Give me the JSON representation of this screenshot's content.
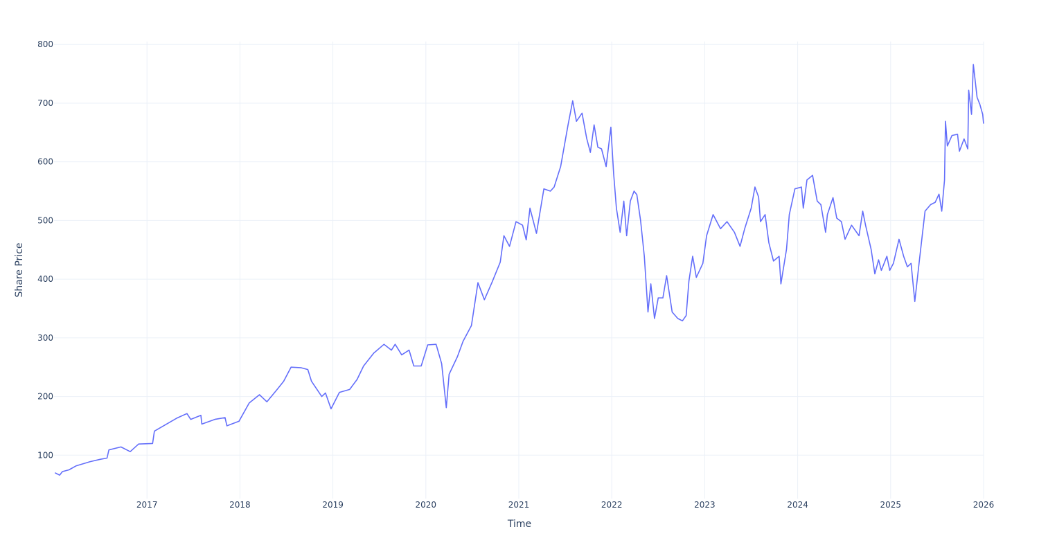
{
  "chart_data": {
    "type": "line",
    "title": "",
    "xlabel": "Time",
    "ylabel": "Share Price",
    "xlim": [
      2016.0,
      2026.0
    ],
    "ylim": [
      26,
      805
    ],
    "grid": true,
    "legend": "none",
    "x_ticks": [
      2017,
      2018,
      2019,
      2020,
      2021,
      2022,
      2023,
      2024,
      2025,
      2026
    ],
    "x_tick_labels": [
      "2017",
      "2018",
      "2019",
      "2020",
      "2021",
      "2022",
      "2023",
      "2024",
      "2025",
      "2026"
    ],
    "y_ticks": [
      100,
      200,
      300,
      400,
      500,
      600,
      700,
      800
    ],
    "y_tick_labels": [
      "100",
      "200",
      "300",
      "400",
      "500",
      "600",
      "700",
      "800"
    ],
    "series": [
      {
        "name": "Share Price",
        "color": "#636efa",
        "x": [
          2016.01,
          2016.06,
          2016.09,
          2016.16,
          2016.24,
          2016.39,
          2016.5,
          2016.57,
          2016.59,
          2016.72,
          2016.82,
          2016.91,
          2017.06,
          2017.08,
          2017.21,
          2017.32,
          2017.43,
          2017.47,
          2017.58,
          2017.59,
          2017.73,
          2017.84,
          2017.86,
          2017.99,
          2018.1,
          2018.21,
          2018.29,
          2018.4,
          2018.47,
          2018.55,
          2018.66,
          2018.73,
          2018.77,
          2018.88,
          2018.92,
          2018.98,
          2019.07,
          2019.18,
          2019.26,
          2019.33,
          2019.44,
          2019.55,
          2019.63,
          2019.67,
          2019.74,
          2019.82,
          2019.87,
          2019.95,
          2020.02,
          2020.11,
          2020.17,
          2020.22,
          2020.25,
          2020.34,
          2020.4,
          2020.49,
          2020.56,
          2020.63,
          2020.71,
          2020.8,
          2020.84,
          2020.9,
          2020.97,
          2021.04,
          2021.08,
          2021.12,
          2021.19,
          2021.27,
          2021.34,
          2021.38,
          2021.45,
          2021.53,
          2021.58,
          2021.62,
          2021.68,
          2021.73,
          2021.77,
          2021.81,
          2021.85,
          2021.89,
          2021.94,
          2021.99,
          2022.02,
          2022.05,
          2022.09,
          2022.13,
          2022.16,
          2022.2,
          2022.24,
          2022.27,
          2022.31,
          2022.35,
          2022.39,
          2022.42,
          2022.46,
          2022.5,
          2022.55,
          2022.59,
          2022.65,
          2022.71,
          2022.76,
          2022.8,
          2022.83,
          2022.87,
          2022.91,
          2022.98,
          2023.02,
          2023.09,
          2023.17,
          2023.24,
          2023.32,
          2023.38,
          2023.43,
          2023.5,
          2023.54,
          2023.58,
          2023.6,
          2023.65,
          2023.69,
          2023.74,
          2023.8,
          2023.82,
          2023.88,
          2023.91,
          2023.97,
          2024.04,
          2024.06,
          2024.1,
          2024.16,
          2024.21,
          2024.25,
          2024.3,
          2024.32,
          2024.38,
          2024.42,
          2024.47,
          2024.51,
          2024.58,
          2024.66,
          2024.7,
          2024.73,
          2024.79,
          2024.83,
          2024.87,
          2024.9,
          2024.96,
          2024.99,
          2025.03,
          2025.09,
          2025.14,
          2025.18,
          2025.22,
          2025.26,
          2025.31,
          2025.34,
          2025.37,
          2025.43,
          2025.48,
          2025.52,
          2025.55,
          2025.58,
          2025.59,
          2025.61,
          2025.66,
          2025.72,
          2025.74,
          2025.79,
          2025.83,
          2025.84,
          2025.87,
          2025.89,
          2025.93,
          2025.96,
          2025.99,
          2026.0
        ],
        "y": [
          70,
          66,
          72,
          75,
          82,
          89,
          93,
          95,
          109,
          114,
          106,
          119,
          120,
          141,
          153,
          163,
          171,
          161,
          168,
          153,
          161,
          164,
          150,
          158,
          189,
          203,
          191,
          212,
          226,
          250,
          249,
          246,
          226,
          200,
          206,
          179,
          207,
          212,
          229,
          252,
          274,
          289,
          279,
          289,
          271,
          279,
          252,
          252,
          288,
          289,
          256,
          181,
          238,
          268,
          294,
          321,
          394,
          365,
          394,
          429,
          474,
          456,
          498,
          492,
          467,
          521,
          478,
          554,
          550,
          557,
          592,
          663,
          704,
          669,
          683,
          640,
          616,
          663,
          625,
          622,
          592,
          659,
          580,
          521,
          480,
          533,
          474,
          533,
          550,
          544,
          500,
          439,
          344,
          392,
          333,
          368,
          368,
          406,
          344,
          333,
          329,
          338,
          397,
          439,
          403,
          427,
          474,
          510,
          486,
          498,
          480,
          456,
          486,
          521,
          557,
          540,
          498,
          510,
          462,
          431,
          439,
          392,
          451,
          510,
          554,
          557,
          521,
          569,
          577,
          533,
          527,
          480,
          510,
          539,
          504,
          498,
          468,
          492,
          474,
          516,
          492,
          451,
          409,
          433,
          415,
          439,
          415,
          427,
          468,
          439,
          421,
          427,
          362,
          433,
          474,
          516,
          527,
          531,
          545,
          516,
          569,
          669,
          627,
          645,
          647,
          618,
          639,
          622,
          722,
          681,
          766,
          710,
          698,
          681,
          665
        ]
      }
    ]
  }
}
